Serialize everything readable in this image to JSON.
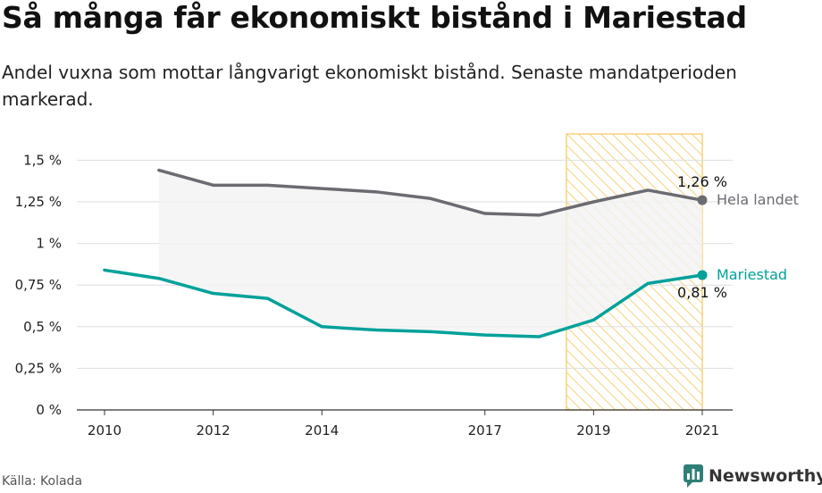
{
  "title": "Så många får ekonomiskt bistånd i Mariestad",
  "subtitle": "Andel vuxna som mottar långvarigt ekonomiskt bistånd. Senaste mandatperioden markerad.",
  "source": "Källa: Kolada",
  "brand": {
    "name": "Newsworthy",
    "icon": "newsworthy-logo-icon"
  },
  "colors": {
    "hela_landet": "#6b6b72",
    "mariestad": "#00a19a",
    "highlight": "#f5d27a",
    "band": "#f3f3f3"
  },
  "chart_data": {
    "type": "line",
    "x": [
      2010,
      2011,
      2012,
      2013,
      2014,
      2015,
      2016,
      2017,
      2018,
      2019,
      2020,
      2021
    ],
    "x_tick_labels": [
      "2010",
      "2012",
      "2014",
      "2017",
      "2019",
      "2021"
    ],
    "y_tick_labels": [
      "0 %",
      "0,25 %",
      "0,5 %",
      "0,75 %",
      "1 %",
      "1,25 %",
      "1,5 %"
    ],
    "ylim": [
      0,
      1.6
    ],
    "grid": true,
    "highlight_period": [
      2018.5,
      2021
    ],
    "series": [
      {
        "name": "Hela landet",
        "values": [
          null,
          1.44,
          1.35,
          1.35,
          1.33,
          1.31,
          1.27,
          1.18,
          1.17,
          1.25,
          1.32,
          1.26
        ],
        "end_label": "1,26 %"
      },
      {
        "name": "Mariestad",
        "values": [
          0.84,
          0.79,
          0.7,
          0.67,
          0.5,
          0.48,
          0.47,
          0.45,
          0.44,
          0.54,
          0.76,
          0.81
        ],
        "end_label": "0,81 %"
      }
    ]
  }
}
